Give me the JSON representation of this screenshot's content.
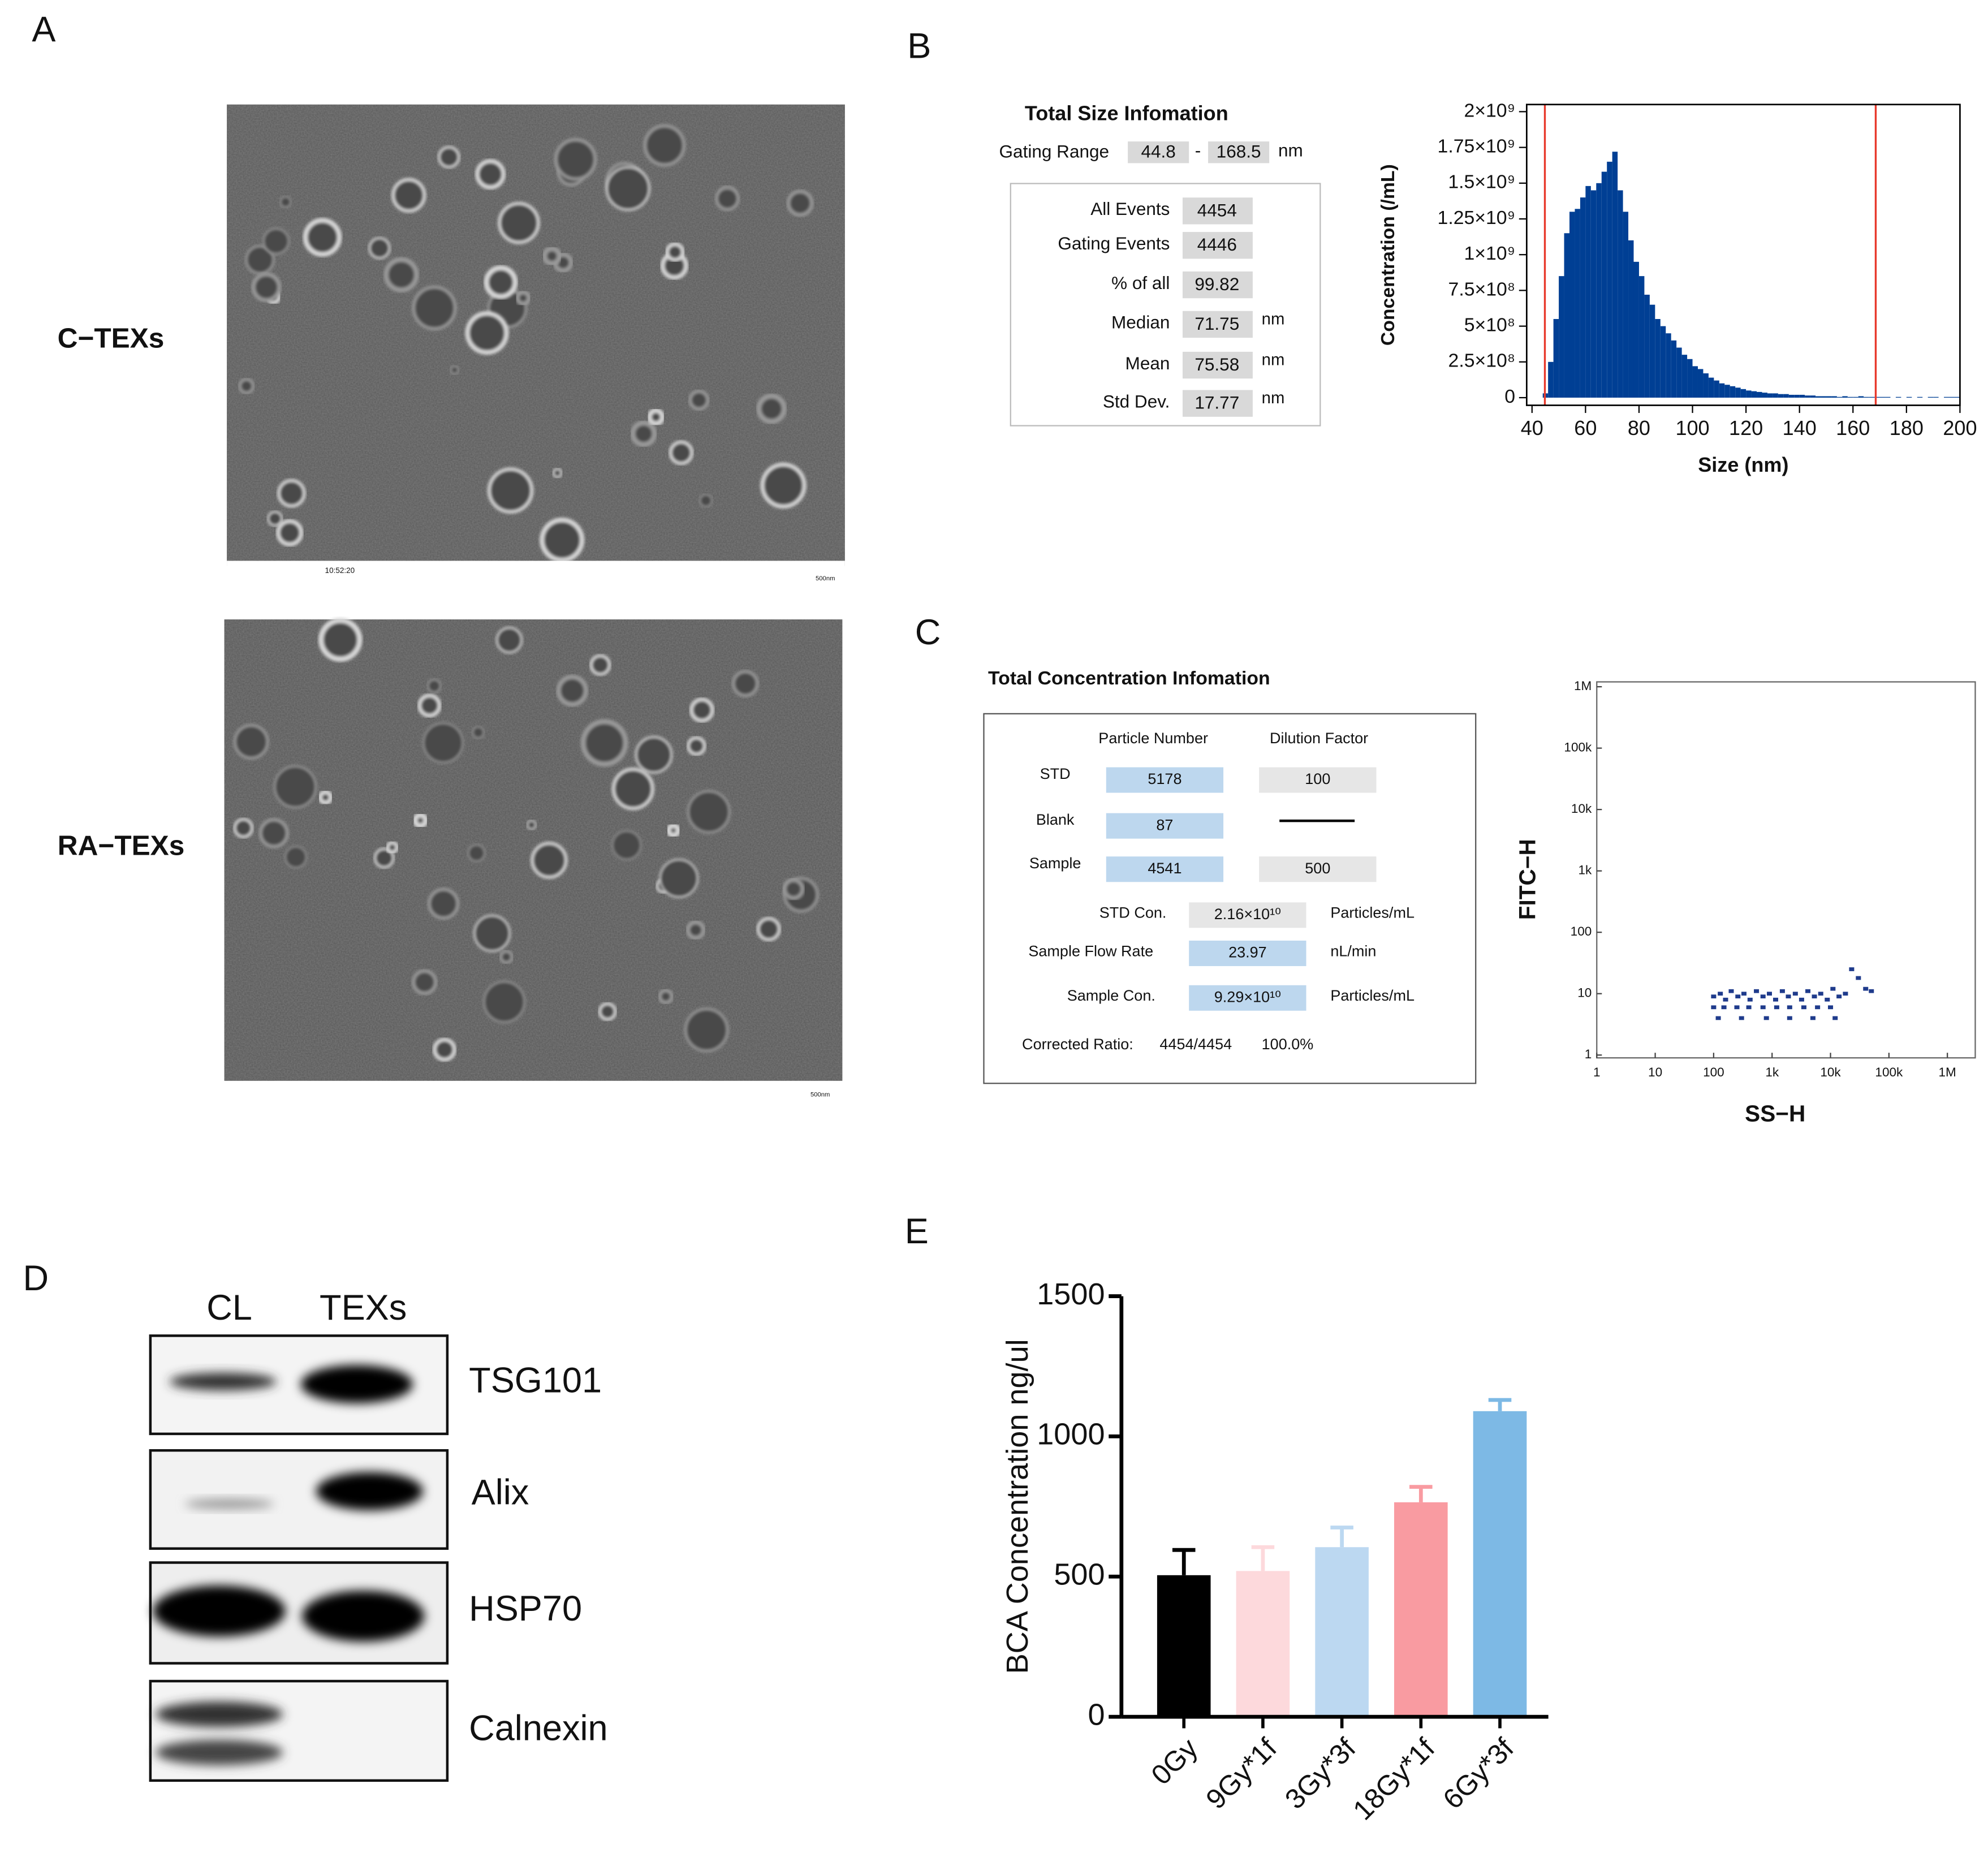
{
  "panel_labels": [
    "A",
    "B",
    "C",
    "D",
    "E"
  ],
  "tem": {
    "samples": [
      "C−TEXs",
      "RA−TEXs"
    ],
    "stamp": "10:52:20",
    "scale": "500nm"
  },
  "size_info": {
    "title": "Total Size Infomation",
    "gating_label": "Gating Range",
    "gating_range": [
      44.8,
      168.5
    ],
    "gating_sep": "-",
    "unit": "nm",
    "rows": [
      {
        "label": "All  Events",
        "value": "4454"
      },
      {
        "label": "Gating  Events",
        "value": "4446"
      },
      {
        "label": "% of all",
        "value": "99.82"
      },
      {
        "label": "Median",
        "value": "71.75",
        "unit": "nm"
      },
      {
        "label": "Mean",
        "value": "75.58",
        "unit": "nm"
      },
      {
        "label": "Std Dev.",
        "value": "17.77",
        "unit": "nm"
      }
    ]
  },
  "concentration_info": {
    "title": "Total Concentration Infomation",
    "headers": [
      "Particle Number",
      "Dilution Factor"
    ],
    "rows": [
      {
        "label": "STD",
        "particles": "5178",
        "dilution": "100"
      },
      {
        "label": "Blank",
        "particles": "87"
      },
      {
        "label": "Sample",
        "particles": "4541",
        "dilution": "500"
      }
    ],
    "results": [
      {
        "label": "STD Con.",
        "value": "2.16×10¹⁰",
        "unit": "Particles/mL"
      },
      {
        "label": "Sample Flow Rate",
        "value": "23.97",
        "unit": "nL/min"
      },
      {
        "label": "Sample Con.",
        "value": "9.29×10¹⁰",
        "unit": "Particles/mL"
      }
    ],
    "corrected": {
      "label": "Corrected Ratio:",
      "ratio": "4454/4454",
      "percent": "100.0%"
    }
  },
  "western_blot": {
    "lanes": [
      "CL",
      "TEXs"
    ],
    "proteins": [
      "TSG101",
      "Alix",
      "HSP70",
      "Calnexin"
    ]
  },
  "chart_data": [
    {
      "type": "histogram",
      "xlabel": "Size (nm)",
      "ylabel": "Concentration (/mL)",
      "bins": [
        40,
        42,
        44,
        46,
        48,
        50,
        52,
        54,
        56,
        58,
        60,
        62,
        64,
        66,
        68,
        70,
        72,
        74,
        76,
        78,
        80,
        82,
        84,
        86,
        88,
        90,
        92,
        94,
        96,
        98,
        100,
        102,
        104,
        106,
        108,
        110,
        112,
        114,
        116,
        118,
        120,
        122,
        124,
        126,
        128,
        130,
        132,
        134,
        136,
        138,
        140,
        142,
        144,
        146,
        148,
        150,
        152,
        154,
        156,
        158,
        160,
        162,
        164,
        166,
        168,
        170,
        172,
        174,
        176,
        178,
        180,
        182,
        184,
        186,
        188,
        190,
        192,
        194,
        196,
        198,
        200
      ],
      "values": [
        0,
        0,
        30000000.0,
        250000000.0,
        550000000.0,
        850000000.0,
        1150000000.0,
        1300000000.0,
        1320000000.0,
        1400000000.0,
        1480000000.0,
        1450000000.0,
        1500000000.0,
        1580000000.0,
        1650000000.0,
        1720000000.0,
        1450000000.0,
        1300000000.0,
        1100000000.0,
        950000000.0,
        850000000.0,
        720000000.0,
        650000000.0,
        550000000.0,
        500000000.0,
        450000000.0,
        400000000.0,
        350000000.0,
        300000000.0,
        270000000.0,
        220000000.0,
        200000000.0,
        170000000.0,
        140000000.0,
        120000000.0,
        100000000.0,
        90000000.0,
        80000000.0,
        70000000.0,
        60000000.0,
        50000000.0,
        45000000.0,
        40000000.0,
        35000000.0,
        30000000.0,
        30000000.0,
        25000000.0,
        25000000.0,
        20000000.0,
        20000000.0,
        20000000.0,
        15000000.0,
        15000000.0,
        10000000.0,
        10000000.0,
        10000000.0,
        10000000.0,
        5000000.0,
        10000000.0,
        5000000.0,
        5000000.0,
        10000000.0,
        5000000.0,
        5000000.0,
        5000000.0,
        5000000.0,
        5000000.0,
        0,
        5000000.0,
        0,
        5000000.0,
        0,
        5000000.0,
        0,
        5000000.0,
        5000000.0,
        0,
        5000000.0,
        5000000.0,
        5000000.0
      ],
      "color": "#003f94",
      "gate_color": "#e8392b",
      "xlim": [
        38,
        200
      ],
      "ylim": [
        0,
        2050000000.0
      ],
      "xticks": [
        40,
        60,
        80,
        100,
        120,
        140,
        160,
        180,
        200
      ],
      "yticks": [
        0,
        {
          "value": 250000000.0,
          "label": "2.5×10⁸"
        },
        {
          "value": 500000000.0,
          "label": "5×10⁸"
        },
        {
          "value": 750000000.0,
          "label": "7.5×10⁸"
        },
        {
          "value": 1000000000.0,
          "label": "1×10⁹"
        },
        {
          "value": 1250000000.0,
          "label": "1.25×10⁹"
        },
        {
          "value": 1500000000.0,
          "label": "1.5×10⁹"
        },
        {
          "value": 1750000000.0,
          "label": "1.75×10⁹"
        },
        {
          "value": 2000000000.0,
          "label": "2×10⁹"
        }
      ]
    },
    {
      "type": "scatter",
      "xlabel": "SS−H",
      "ylabel": "FITC−H",
      "log_x": true,
      "log_y": true,
      "x": [
        100,
        130,
        160,
        200,
        260,
        330,
        420,
        540,
        700,
        900,
        1150,
        1500,
        1900,
        2500,
        3200,
        4100,
        5300,
        6800,
        8800,
        11000,
        14000,
        18000,
        23000,
        30000,
        40000,
        50000,
        100,
        150,
        250,
        400,
        700,
        1200,
        2000,
        3500,
        6000,
        10000,
        120,
        300,
        800,
        2000,
        5000,
        12000
      ],
      "y": [
        9,
        10,
        8,
        11,
        9,
        10,
        8,
        11,
        9,
        10,
        8,
        11,
        9,
        10,
        8,
        11,
        9,
        10,
        8,
        12,
        9,
        10,
        25,
        18,
        12,
        11,
        6,
        6,
        6,
        6,
        6,
        6,
        6,
        6,
        6,
        6,
        4,
        4,
        4,
        4,
        4,
        4
      ],
      "color": "#1f3b8c",
      "xlim": [
        1,
        3000000
      ],
      "ylim": [
        0.9,
        1200000
      ],
      "xticks": [
        1,
        10,
        100,
        {
          "value": 1000,
          "label": "1k"
        },
        {
          "value": 10000,
          "label": "10k"
        },
        {
          "value": 100000,
          "label": "100k"
        },
        {
          "value": 1000000,
          "label": "1M"
        }
      ],
      "yticks": [
        1,
        10,
        100,
        {
          "value": 1000,
          "label": "1k"
        },
        {
          "value": 10000,
          "label": "10k"
        },
        {
          "value": 100000,
          "label": "100k"
        },
        {
          "value": 1000000,
          "label": "1M"
        }
      ]
    },
    {
      "type": "bar",
      "ylabel": "BCA Concentration ng/ul",
      "categories": [
        "0Gy",
        "9Gy*1f",
        "3Gy*3f",
        "18Gy*1f",
        "6Gy*3f"
      ],
      "values": [
        505,
        520,
        605,
        765,
        1090
      ],
      "errors": [
        90,
        85,
        70,
        55,
        40
      ],
      "colors": [
        "#000000",
        "#fdd9dc",
        "#bcd8f1",
        "#f99ba1",
        "#7db9e5"
      ],
      "ylim": [
        0,
        1500
      ],
      "yticks": [
        0,
        500,
        1000,
        1500
      ]
    }
  ]
}
